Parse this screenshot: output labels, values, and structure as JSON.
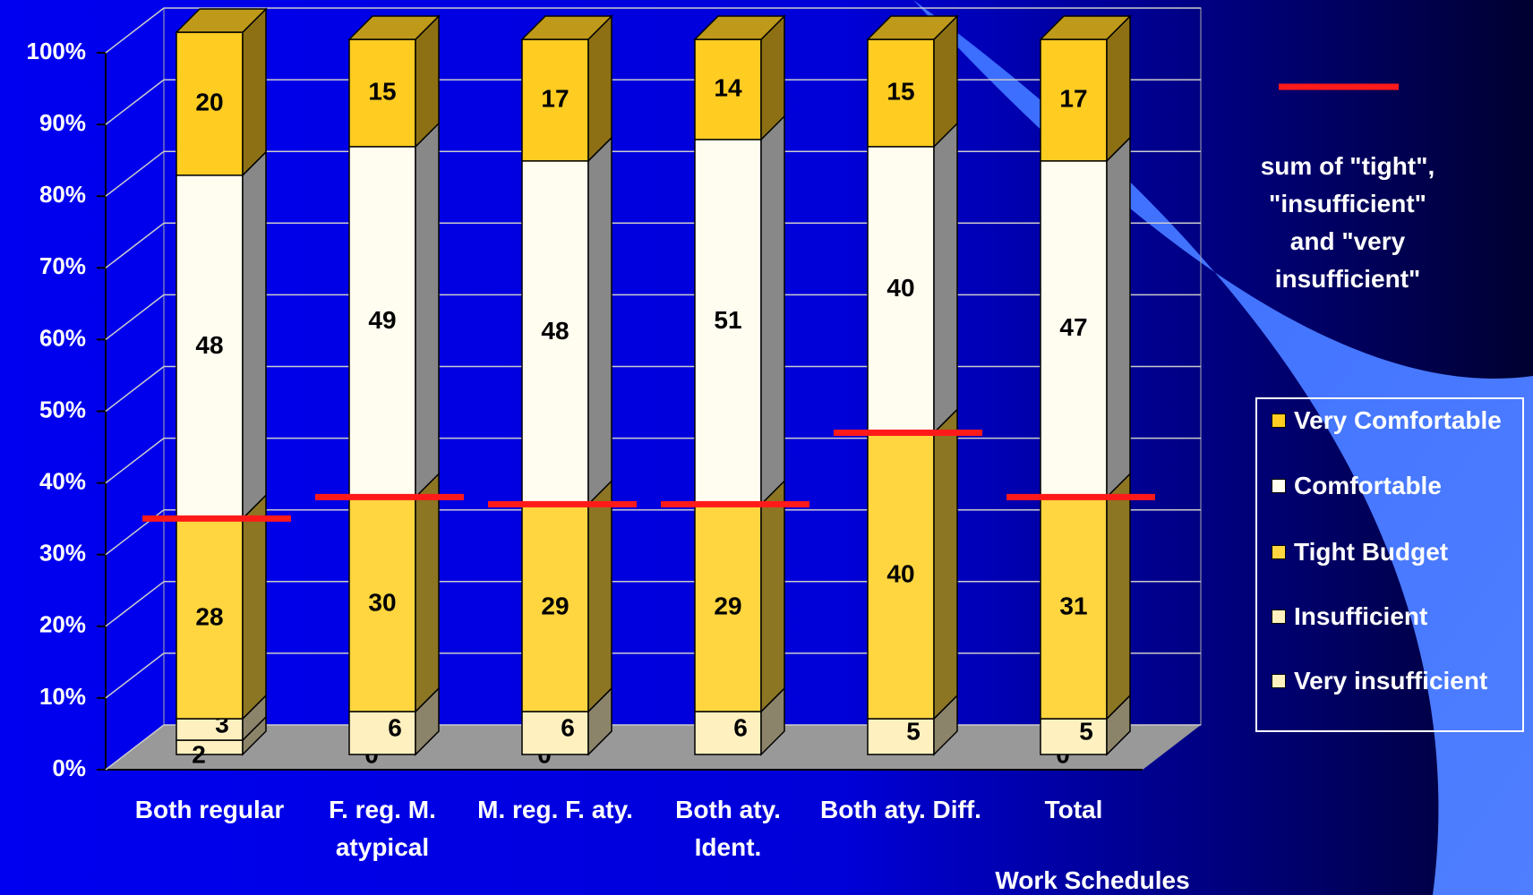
{
  "chart_data": {
    "type": "bar",
    "stacked": true,
    "x_label": "Work Schedules",
    "categories": [
      "Both regular",
      "F. reg. M. atypical",
      "M. reg. F. aty.",
      "Both aty. Ident.",
      "Both aty. Diff.",
      "Total"
    ],
    "series": [
      {
        "name": "Very insufficient",
        "color": "#fff0c0",
        "values": [
          2,
          0,
          0,
          null,
          null,
          0
        ]
      },
      {
        "name": "Insufficient",
        "color": "#fff0c0",
        "values": [
          3,
          6,
          6,
          6,
          5,
          5
        ]
      },
      {
        "name": "Tight Budget",
        "color": "#ffd640",
        "values": [
          28,
          30,
          29,
          29,
          40,
          31
        ]
      },
      {
        "name": "Comfortable",
        "color": "#fffcf0",
        "values": [
          48,
          49,
          48,
          51,
          40,
          47
        ]
      },
      {
        "name": "Very Comfortable",
        "color": "#ffcc22",
        "values": [
          20,
          15,
          17,
          14,
          15,
          17
        ]
      },
      {
        "name": "sum of \"tight\", \"insufficient\" and \"very insufficient\"",
        "type": "dash",
        "color": "#ff1a1a",
        "values": [
          33,
          36,
          35,
          35,
          45,
          36
        ]
      }
    ],
    "ylim": [
      0,
      100
    ],
    "yticks": [
      {
        "value": 0,
        "label": "0%"
      },
      {
        "value": 10,
        "label": "10%"
      },
      {
        "value": 20,
        "label": "20%"
      },
      {
        "value": 30,
        "label": "30%"
      },
      {
        "value": 40,
        "label": "40%"
      },
      {
        "value": 50,
        "label": "50%"
      },
      {
        "value": 60,
        "label": "60%"
      },
      {
        "value": 70,
        "label": "70%"
      },
      {
        "value": 80,
        "label": "80%"
      },
      {
        "value": 90,
        "label": "90%"
      },
      {
        "value": 100,
        "label": "100%"
      }
    ],
    "grid": true
  }
}
